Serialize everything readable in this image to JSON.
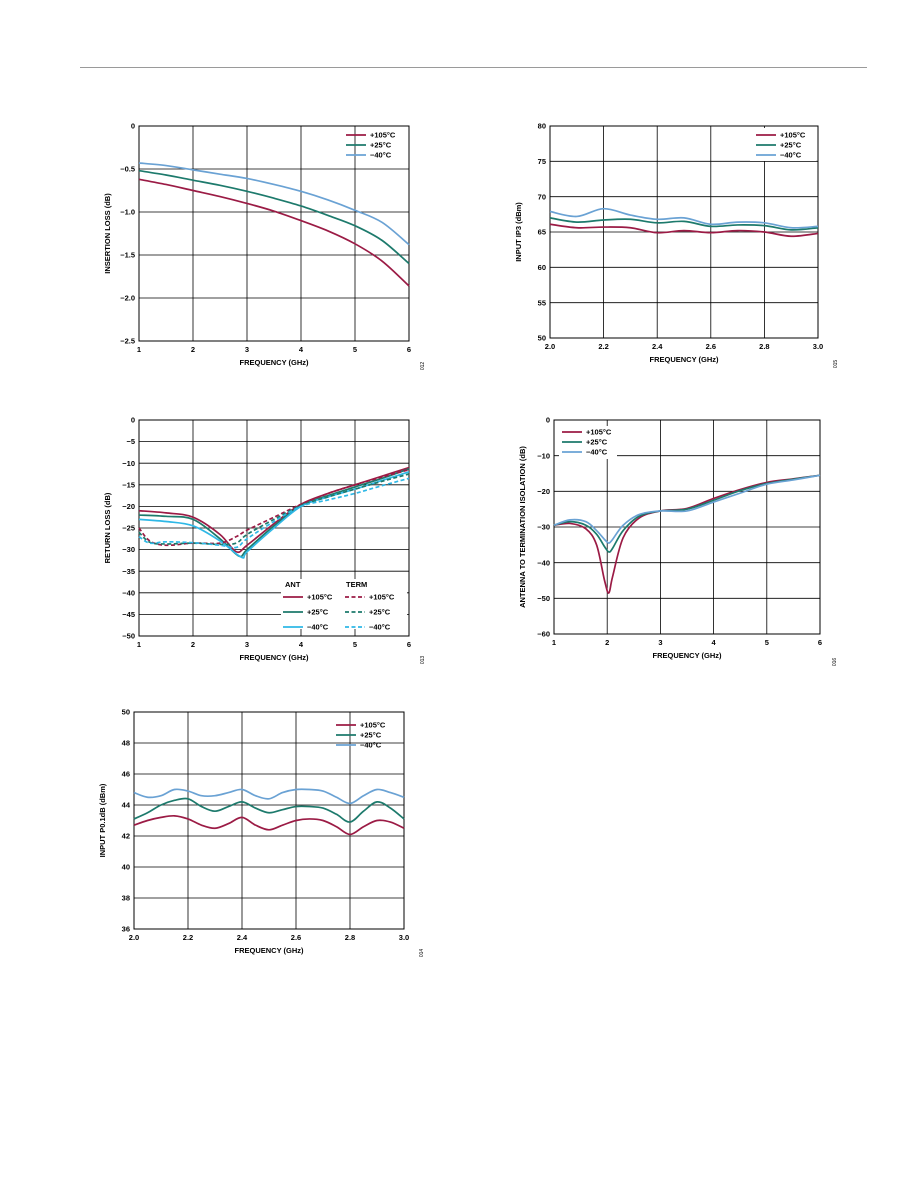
{
  "colors": {
    "hot": "#9b1b45",
    "room": "#1d7a6c",
    "cold": "#6aa2d4",
    "cold_rl": "#2fb8e6",
    "grid": "#000000"
  },
  "chart_data": [
    {
      "id": "insertion-loss",
      "type": "line",
      "xlabel": "FREQUENCY (GHz)",
      "ylabel": "INSERTION LOSS (dB)",
      "xlim": [
        1,
        6
      ],
      "ylim": [
        -2.5,
        0
      ],
      "xticks": [
        "1",
        "2",
        "3",
        "4",
        "5",
        "6"
      ],
      "yticks": [
        "0",
        "−0.5",
        "−1.0",
        "−1.5",
        "−2.0",
        "−2.5"
      ],
      "legend": [
        "+105°C",
        "+25°C",
        "−40°C"
      ],
      "fig_id": "012",
      "series": [
        {
          "name": "+105°C",
          "color": "hot",
          "x": [
            1,
            1.5,
            2,
            2.5,
            3,
            3.5,
            4,
            4.5,
            5,
            5.5,
            6
          ],
          "y": [
            -0.62,
            -0.68,
            -0.75,
            -0.82,
            -0.9,
            -0.99,
            -1.1,
            -1.22,
            -1.37,
            -1.57,
            -1.86
          ]
        },
        {
          "name": "+25°C",
          "color": "room",
          "x": [
            1,
            1.5,
            2,
            2.5,
            3,
            3.5,
            4,
            4.5,
            5,
            5.5,
            6
          ],
          "y": [
            -0.52,
            -0.57,
            -0.63,
            -0.69,
            -0.76,
            -0.84,
            -0.93,
            -1.04,
            -1.16,
            -1.33,
            -1.6
          ]
        },
        {
          "name": "−40°C",
          "color": "cold",
          "x": [
            1,
            1.5,
            2,
            2.5,
            3,
            3.5,
            4,
            4.5,
            5,
            5.5,
            6
          ],
          "y": [
            -0.43,
            -0.46,
            -0.51,
            -0.56,
            -0.61,
            -0.68,
            -0.76,
            -0.86,
            -0.98,
            -1.12,
            -1.38
          ]
        }
      ]
    },
    {
      "id": "input-ip3",
      "type": "line",
      "xlabel": "FREQUENCY (GHz)",
      "ylabel": "INPUT IP3 (dBm)",
      "xlim": [
        2.0,
        3.0
      ],
      "ylim": [
        50,
        80
      ],
      "xticks": [
        "2.0",
        "2.2",
        "2.4",
        "2.6",
        "2.8",
        "3.0"
      ],
      "yticks": [
        "80",
        "75",
        "70",
        "65",
        "60",
        "55",
        "50"
      ],
      "legend": [
        "+105°C",
        "+25°C",
        "−40°C"
      ],
      "fig_id": "015",
      "series": [
        {
          "name": "+105°C",
          "color": "hot",
          "x": [
            2.0,
            2.1,
            2.2,
            2.3,
            2.4,
            2.5,
            2.6,
            2.7,
            2.8,
            2.9,
            3.0
          ],
          "y": [
            66.1,
            65.6,
            65.7,
            65.6,
            64.9,
            65.2,
            64.9,
            65.2,
            65.0,
            64.4,
            64.8
          ]
        },
        {
          "name": "+25°C",
          "color": "room",
          "x": [
            2.0,
            2.1,
            2.2,
            2.3,
            2.4,
            2.5,
            2.6,
            2.7,
            2.8,
            2.9,
            3.0
          ],
          "y": [
            67.0,
            66.4,
            66.7,
            66.8,
            66.3,
            66.5,
            65.8,
            66.0,
            65.9,
            65.3,
            65.6
          ]
        },
        {
          "name": "−40°C",
          "color": "cold",
          "x": [
            2.0,
            2.1,
            2.2,
            2.3,
            2.4,
            2.5,
            2.6,
            2.7,
            2.8,
            2.9,
            3.0
          ],
          "y": [
            67.9,
            67.2,
            68.3,
            67.4,
            66.8,
            67.0,
            66.1,
            66.4,
            66.3,
            65.6,
            65.8
          ]
        }
      ]
    },
    {
      "id": "return-loss",
      "type": "line",
      "xlabel": "FREQUENCY (GHz)",
      "ylabel": "RETURN LOSS (dB)",
      "xlim": [
        1,
        6
      ],
      "ylim": [
        -50,
        0
      ],
      "xticks": [
        "1",
        "2",
        "3",
        "4",
        "5",
        "6"
      ],
      "yticks": [
        "0",
        "−5",
        "−10",
        "−15",
        "−20",
        "−25",
        "−30",
        "−35",
        "−40",
        "−45",
        "−50"
      ],
      "legend_headers": [
        "ANT",
        "TERM"
      ],
      "legend": [
        "+105°C",
        "+25°C",
        "−40°C"
      ],
      "fig_id": "013",
      "series": [
        {
          "name": "ANT +105°C",
          "color": "hot",
          "dash": false,
          "x": [
            1,
            1.5,
            2,
            2.5,
            2.8,
            3,
            3.5,
            4,
            4.5,
            5,
            5.5,
            6
          ],
          "y": [
            -21,
            -21.5,
            -22.5,
            -26.5,
            -30.5,
            -29,
            -24,
            -19.5,
            -17,
            -15,
            -13,
            -11
          ]
        },
        {
          "name": "ANT +25°C",
          "color": "room",
          "dash": false,
          "x": [
            1,
            1.5,
            2,
            2.5,
            2.85,
            3,
            3.5,
            4,
            4.5,
            5,
            5.5,
            6
          ],
          "y": [
            -22,
            -22.3,
            -23,
            -27.5,
            -31.5,
            -30,
            -24.5,
            -19.8,
            -17.5,
            -15.5,
            -13.5,
            -11.3
          ]
        },
        {
          "name": "ANT −40°C",
          "color": "cold_rl",
          "dash": false,
          "x": [
            1,
            1.5,
            2,
            2.5,
            2.9,
            3,
            3.5,
            4,
            4.5,
            5,
            5.5,
            6
          ],
          "y": [
            -23,
            -23.5,
            -24.5,
            -28,
            -31.8,
            -30.5,
            -25,
            -20,
            -17.8,
            -16,
            -14,
            -12
          ]
        },
        {
          "name": "TERM +105°C",
          "color": "hot",
          "dash": true,
          "x": [
            1,
            1.2,
            1.5,
            2,
            2.5,
            2.8,
            3,
            3.5,
            4,
            4.5,
            5,
            5.5,
            6
          ],
          "y": [
            -25,
            -28,
            -29,
            -28.5,
            -28.5,
            -27,
            -25.5,
            -22.5,
            -19.5,
            -17,
            -15,
            -13.2,
            -11.5
          ]
        },
        {
          "name": "TERM +25°C",
          "color": "room",
          "dash": true,
          "x": [
            1,
            1.2,
            1.5,
            2,
            2.5,
            2.8,
            3,
            3.5,
            4,
            4.5,
            5,
            5.5,
            6
          ],
          "y": [
            -26,
            -28.3,
            -28.7,
            -28.5,
            -28.8,
            -28.5,
            -26.5,
            -23,
            -19.8,
            -17.8,
            -16,
            -14.2,
            -12.5
          ]
        },
        {
          "name": "TERM −40°C",
          "color": "cold_rl",
          "dash": true,
          "x": [
            1,
            1.2,
            1.5,
            2,
            2.5,
            2.8,
            3,
            3.5,
            4,
            4.5,
            5,
            5.5,
            6
          ],
          "y": [
            -27,
            -28.5,
            -28.2,
            -28.4,
            -29,
            -29.5,
            -27.5,
            -23.5,
            -20,
            -18.5,
            -17,
            -15.2,
            -13.5
          ]
        }
      ]
    },
    {
      "id": "antenna-isolation",
      "type": "line",
      "xlabel": "FREQUENCY (GHz)",
      "ylabel": "ANTENNA TO TERMINATION ISOLATION (dB)",
      "xlim": [
        1,
        6
      ],
      "ylim": [
        -60,
        0
      ],
      "xticks": [
        "1",
        "2",
        "3",
        "4",
        "5",
        "6"
      ],
      "yticks": [
        "0",
        "−10",
        "−20",
        "−30",
        "−40",
        "−50",
        "−60"
      ],
      "legend": [
        "+105°C",
        "+25°C",
        "−40°C"
      ],
      "fig_id": "016",
      "series": [
        {
          "name": "+105°C",
          "color": "hot",
          "x": [
            1,
            1.3,
            1.6,
            1.8,
            1.95,
            2.03,
            2.1,
            2.3,
            2.6,
            3,
            3.5,
            4,
            4.5,
            5,
            5.5,
            6
          ],
          "y": [
            -29.5,
            -29,
            -30.5,
            -35,
            -45,
            -48.5,
            -44,
            -33,
            -27.5,
            -25.5,
            -24.8,
            -22,
            -19.5,
            -17.5,
            -16.5,
            -15.5
          ]
        },
        {
          "name": "+25°C",
          "color": "room",
          "x": [
            1,
            1.3,
            1.6,
            1.8,
            1.95,
            2.03,
            2.1,
            2.3,
            2.6,
            3,
            3.5,
            4,
            4.5,
            5,
            5.5,
            6
          ],
          "y": [
            -29.5,
            -28.5,
            -29.5,
            -32,
            -35.5,
            -37,
            -36,
            -31,
            -27,
            -25.5,
            -25,
            -22.5,
            -19.8,
            -17.8,
            -16.6,
            -15.5
          ]
        },
        {
          "name": "−40°C",
          "color": "cold",
          "x": [
            1,
            1.3,
            1.6,
            1.8,
            1.95,
            2.03,
            2.1,
            2.3,
            2.6,
            3,
            3.5,
            4,
            4.5,
            5,
            5.5,
            6
          ],
          "y": [
            -29.5,
            -28,
            -28.5,
            -31,
            -33.5,
            -34.5,
            -33.5,
            -29.5,
            -26.5,
            -25.5,
            -25.5,
            -23,
            -20.5,
            -18,
            -16.8,
            -15.5
          ]
        }
      ]
    },
    {
      "id": "input-p0-1db",
      "type": "line",
      "xlabel": "FREQUENCY (GHz)",
      "ylabel": "INPUT P0.1dB (dBm)",
      "xlim": [
        2.0,
        3.0
      ],
      "ylim": [
        36,
        50
      ],
      "xticks": [
        "2.0",
        "2.2",
        "2.4",
        "2.6",
        "2.8",
        "3.0"
      ],
      "yticks": [
        "50",
        "48",
        "46",
        "44",
        "42",
        "40",
        "38",
        "36"
      ],
      "legend": [
        "+105°C",
        "+25°C",
        "−40°C"
      ],
      "fig_id": "014",
      "series": [
        {
          "name": "+105°C",
          "color": "hot",
          "x": [
            2.0,
            2.05,
            2.1,
            2.15,
            2.2,
            2.25,
            2.3,
            2.35,
            2.4,
            2.45,
            2.5,
            2.55,
            2.6,
            2.65,
            2.7,
            2.75,
            2.8,
            2.85,
            2.9,
            2.95,
            3.0
          ],
          "y": [
            42.7,
            43.0,
            43.2,
            43.3,
            43.1,
            42.7,
            42.5,
            42.8,
            43.2,
            42.7,
            42.4,
            42.7,
            43.0,
            43.1,
            43.0,
            42.6,
            42.1,
            42.6,
            43.0,
            42.9,
            42.5
          ]
        },
        {
          "name": "+25°C",
          "color": "room",
          "x": [
            2.0,
            2.05,
            2.1,
            2.15,
            2.2,
            2.25,
            2.3,
            2.35,
            2.4,
            2.45,
            2.5,
            2.55,
            2.6,
            2.65,
            2.7,
            2.75,
            2.8,
            2.85,
            2.9,
            2.95,
            3.0
          ],
          "y": [
            43.1,
            43.5,
            44.0,
            44.3,
            44.4,
            43.9,
            43.6,
            43.9,
            44.2,
            43.8,
            43.5,
            43.7,
            43.9,
            43.9,
            43.8,
            43.4,
            42.9,
            43.6,
            44.2,
            43.8,
            43.1
          ]
        },
        {
          "name": "−40°C",
          "color": "cold",
          "x": [
            2.0,
            2.05,
            2.1,
            2.15,
            2.2,
            2.25,
            2.3,
            2.35,
            2.4,
            2.45,
            2.5,
            2.55,
            2.6,
            2.65,
            2.7,
            2.75,
            2.8,
            2.85,
            2.9,
            2.95,
            3.0
          ],
          "y": [
            44.8,
            44.5,
            44.6,
            45.0,
            44.9,
            44.6,
            44.6,
            44.8,
            45.0,
            44.6,
            44.4,
            44.8,
            45.0,
            45.0,
            44.9,
            44.5,
            44.1,
            44.6,
            45.0,
            44.8,
            44.5
          ]
        }
      ]
    }
  ]
}
